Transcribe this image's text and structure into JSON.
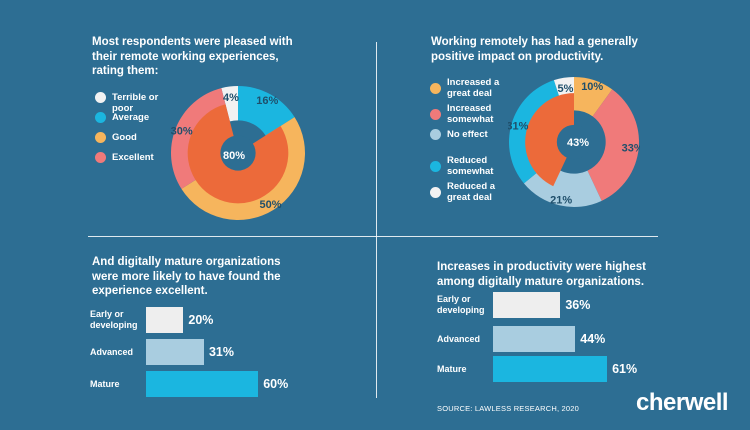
{
  "colors": {
    "background": "#2d6e93",
    "white": "#f2f2f2",
    "cyan": "#1bb6e0",
    "orange": "#f6b55d",
    "salmon": "#f07a7a",
    "light_blue": "#a9cde0",
    "center": "#ec6a3a",
    "bar_early": "#eeeeee",
    "bar_advanced": "#a9cde0",
    "bar_mature": "#1bb6e0"
  },
  "panel1": {
    "title_lines": [
      "Most respondents were pleased with",
      "their remote working experiences,",
      "rating them:"
    ],
    "center_value": "80%"
  },
  "panel2": {
    "title_lines": [
      "Working remotely has had a generally",
      "positive impact on productivity."
    ],
    "center_value": "43%"
  },
  "panel3": {
    "title_lines": [
      "And digitally mature organizations",
      "were more likely to have found the",
      "experience excellent."
    ]
  },
  "panel4": {
    "title_lines": [
      "Increases in productivity were highest",
      "among digitally mature organizations."
    ]
  },
  "footer": {
    "source": "SOURCE: LAWLESS RESEARCH, 2020",
    "logo": "cherwell"
  },
  "chart_data": [
    {
      "type": "pie",
      "title": "Most respondents were pleased with their remote working experiences, rating them:",
      "categories": [
        "Terrible or poor",
        "Average",
        "Good",
        "Excellent"
      ],
      "values": [
        4,
        16,
        50,
        30
      ],
      "labels": [
        "4%",
        "16%",
        "50%",
        "30%"
      ],
      "colors": [
        "#f2f2f2",
        "#1bb6e0",
        "#f6b55d",
        "#f07a7a"
      ],
      "legend_items": [
        {
          "lines": [
            "Terrible or poor"
          ],
          "color": "#f2f2f2"
        },
        {
          "lines": [
            "Average"
          ],
          "color": "#1bb6e0"
        },
        {
          "lines": [
            "Good"
          ],
          "color": "#f6b55d"
        },
        {
          "lines": [
            "Excellent"
          ],
          "color": "#f07a7a"
        }
      ],
      "inner_ring": {
        "share": 80,
        "label": "80%",
        "color": "#ec6a3a"
      }
    },
    {
      "type": "pie",
      "title": "Working remotely has had a generally positive impact on productivity.",
      "categories": [
        "Increased a great deal",
        "Increased somewhat",
        "No effect",
        "Reduced somewhat",
        "Reduced a great deal"
      ],
      "values": [
        10,
        33,
        21,
        31,
        5
      ],
      "labels": [
        "10%",
        "33%",
        "21%",
        "31%",
        "5%"
      ],
      "colors": [
        "#f6b55d",
        "#f07a7a",
        "#a9cde0",
        "#1bb6e0",
        "#f2f2f2"
      ],
      "legend_items": [
        {
          "lines": [
            "Increased a",
            "great deal"
          ],
          "color": "#f6b55d"
        },
        {
          "lines": [
            "Increased",
            "somewhat"
          ],
          "color": "#f07a7a"
        },
        {
          "lines": [
            "No effect"
          ],
          "color": "#a9cde0"
        },
        {
          "lines": [
            "Reduced",
            "somewhat"
          ],
          "color": "#1bb6e0"
        },
        {
          "lines": [
            "Reduced a",
            "great deal"
          ],
          "color": "#f2f2f2"
        }
      ],
      "inner_ring": {
        "share": 43,
        "label": "43%",
        "color": "#ec6a3a"
      }
    },
    {
      "type": "bar",
      "orientation": "horizontal",
      "title": "And digitally mature organizations were more likely to have found the experience excellent.",
      "categories": [
        "Early or developing",
        "Advanced",
        "Mature"
      ],
      "category_lines": [
        [
          "Early or",
          "developing"
        ],
        [
          "Advanced"
        ],
        [
          "Mature"
        ]
      ],
      "values": [
        20,
        31,
        60
      ],
      "labels": [
        "20%",
        "31%",
        "60%"
      ],
      "colors": [
        "#eeeeee",
        "#a9cde0",
        "#1bb6e0"
      ]
    },
    {
      "type": "bar",
      "orientation": "horizontal",
      "title": "Increases in productivity were highest among digitally mature organizations.",
      "categories": [
        "Early or developing",
        "Advanced",
        "Mature"
      ],
      "category_lines": [
        [
          "Early or",
          "developing"
        ],
        [
          "Advanced"
        ],
        [
          "Mature"
        ]
      ],
      "values": [
        36,
        44,
        61
      ],
      "labels": [
        "36%",
        "44%",
        "61%"
      ],
      "colors": [
        "#eeeeee",
        "#a9cde0",
        "#1bb6e0"
      ]
    }
  ]
}
